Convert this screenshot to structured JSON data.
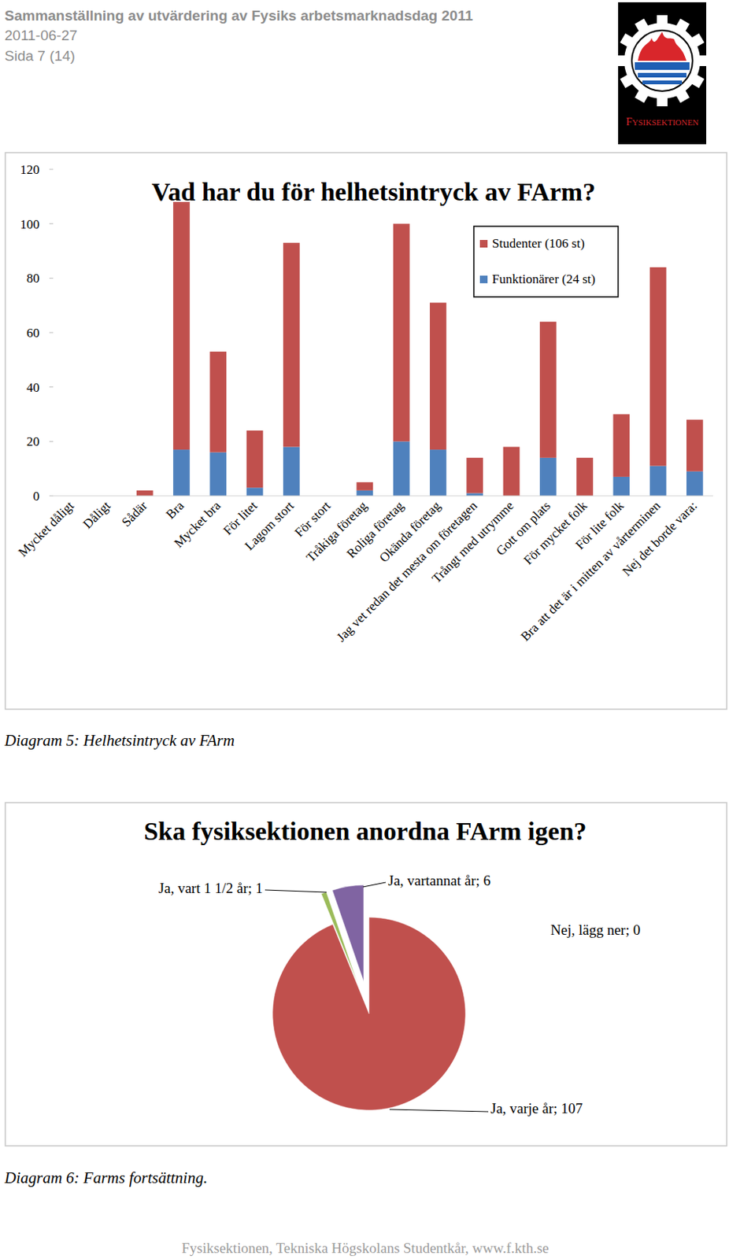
{
  "header": {
    "title": "Sammanställning av utvärdering av Fysiks arbetsmarknadsdag 2011",
    "date": "2011-06-27",
    "page": "Sida 7 (14)",
    "logo_text": "Fysiksektionen"
  },
  "chart_data": [
    {
      "type": "bar",
      "title": "Vad har du för helhetsintryck av FArm?",
      "categories": [
        "Mycket dåligt",
        "Dåligt",
        "Sådär",
        "Bra",
        "Mycket bra",
        "För litet",
        "Lagom stort",
        "För stort",
        "Tråkiga företag",
        "Roliga företag",
        "Okända företag",
        "Jag vet redan det mesta om företagen",
        "Trångt med utrymme",
        "Gott om plats",
        "För mycket folk",
        "För lite folk",
        "Bra att det är i mitten av vårterminen",
        "Nej det borde vara:"
      ],
      "series": [
        {
          "name": "Funktionärer (24 st)",
          "color": "#4f81bd",
          "values": [
            0,
            0,
            0,
            17,
            16,
            3,
            18,
            0,
            2,
            20,
            17,
            1,
            0,
            14,
            0,
            7,
            11,
            9
          ]
        },
        {
          "name": "Studenter (106 st)",
          "color": "#c0504d",
          "values": [
            0,
            0,
            2,
            91,
            37,
            21,
            75,
            0,
            3,
            80,
            54,
            13,
            18,
            50,
            14,
            23,
            73,
            19
          ]
        }
      ],
      "stacked": true,
      "ylim": [
        0,
        120
      ],
      "yticks": [
        0,
        20,
        40,
        60,
        80,
        100,
        120
      ],
      "grid": false,
      "legend": "top-right"
    },
    {
      "type": "pie",
      "title": "Ska fysiksektionen anordna FArm igen?",
      "categories": [
        "Ja, varje år",
        "Ja, vart 1 1/2 år",
        "Ja, vartannat år",
        "Nej, lägg ner"
      ],
      "values": [
        107,
        1,
        6,
        0
      ],
      "value_labels": [
        "Ja, varje år; 107",
        "Ja, vart 1 1/2 år; 1",
        "Ja, vartannat år; 6",
        "Nej, lägg ner; 0"
      ],
      "colors": [
        "#c0504d",
        "#9bbb59",
        "#8064a2",
        "#4f81bd"
      ],
      "data_labels": true
    }
  ],
  "captions": [
    "Diagram 5: Helhetsintryck av FArm",
    "Diagram 6: Farms fortsättning."
  ],
  "footer": "Fysiksektionen, Tekniska Högskolans Studentkår, www.f.kth.se"
}
